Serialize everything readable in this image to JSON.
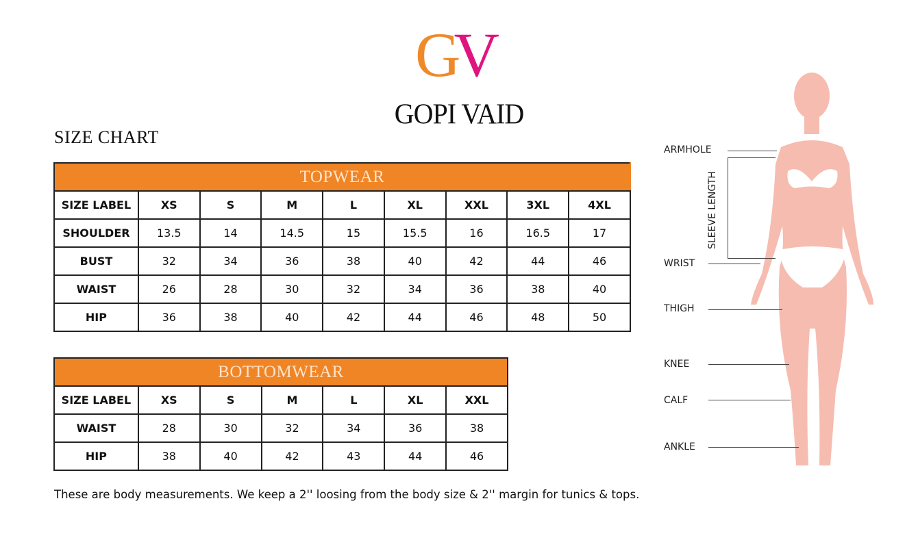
{
  "logo": {
    "monogram_g": "G",
    "monogram_v": "V",
    "brand": "GOPI VAID",
    "colors": {
      "g": "#ee8a2a",
      "v": "#e0147f"
    }
  },
  "title": "SIZE CHART",
  "topwear": {
    "heading": "TOPWEAR",
    "header_color": "#f08526",
    "rows": [
      [
        "SIZE LABEL",
        "XS",
        "S",
        "M",
        "L",
        "XL",
        "XXL",
        "3XL",
        "4XL"
      ],
      [
        "SHOULDER",
        "13.5",
        "14",
        "14.5",
        "15",
        "15.5",
        "16",
        "16.5",
        "17"
      ],
      [
        "BUST",
        "32",
        "34",
        "36",
        "38",
        "40",
        "42",
        "44",
        "46"
      ],
      [
        "WAIST",
        "26",
        "28",
        "30",
        "32",
        "34",
        "36",
        "38",
        "40"
      ],
      [
        "HIP",
        "36",
        "38",
        "40",
        "42",
        "44",
        "46",
        "48",
        "50"
      ]
    ]
  },
  "bottomwear": {
    "heading": "BOTTOMWEAR",
    "rows": [
      [
        "SIZE LABEL",
        "XS",
        "S",
        "M",
        "L",
        "XL",
        "XXL"
      ],
      [
        "WAIST",
        "28",
        "30",
        "32",
        "34",
        "36",
        "38"
      ],
      [
        "HIP",
        "38",
        "40",
        "42",
        "43",
        "44",
        "46"
      ]
    ]
  },
  "note": "These are body measurements. We keep a 2'' loosing from the body size & 2'' margin for tunics & tops.",
  "figure": {
    "labels": {
      "armhole": "ARMHOLE",
      "sleeve": "SLEEVE LENGTH",
      "wrist": "WRIST",
      "thigh": "THIGH",
      "knee": "KNEE",
      "calf": "CALF",
      "ankle": "ANKLE"
    },
    "body_color": "#f6bcb0"
  }
}
